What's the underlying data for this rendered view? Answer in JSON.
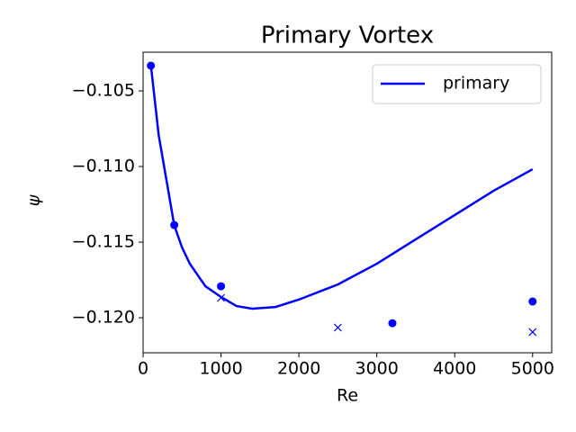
{
  "chart_data": {
    "type": "line",
    "title": "Primary Vortex",
    "x_label": "Re",
    "y_label": "ψ",
    "series": [
      {
        "name": "primary",
        "color": "#0000ff",
        "x": [
          100,
          200,
          300,
          400,
          500,
          600,
          800,
          1000,
          1200,
          1400,
          1700,
          2000,
          2500,
          3000,
          3500,
          4000,
          4500,
          5000
        ],
        "values": [
          -0.1033,
          -0.10792,
          -0.1109,
          -0.1139,
          -0.11536,
          -0.11643,
          -0.11792,
          -0.11863,
          -0.11923,
          -0.1194,
          -0.11929,
          -0.1188,
          -0.1178,
          -0.11643,
          -0.11482,
          -0.11321,
          -0.1116,
          -0.11018
        ]
      }
    ],
    "markers": [
      {
        "marker": "o",
        "color": "#0000ff",
        "x": [
          100,
          400,
          1000,
          3200,
          5000
        ],
        "values": [
          -0.10333,
          -0.11387,
          -0.11792,
          -0.12036,
          -0.11893
        ]
      },
      {
        "marker": "x",
        "color": "#0000ff",
        "x": [
          1000,
          2500,
          5000
        ],
        "values": [
          -0.11869,
          -0.12065,
          -0.12095
        ]
      }
    ],
    "xlim": [
      0,
      5245
    ],
    "xticks": [
      0,
      1000,
      2000,
      3000,
      4000,
      5000
    ],
    "ylim": [
      -0.12232,
      -0.10244
    ],
    "yticks": [
      {
        "value": -0.105,
        "label": "−0.105"
      },
      {
        "value": -0.11,
        "label": "−0.110"
      },
      {
        "value": -0.115,
        "label": "−0.115"
      },
      {
        "value": -0.12,
        "label": "−0.120"
      }
    ],
    "legend": "upper right"
  }
}
